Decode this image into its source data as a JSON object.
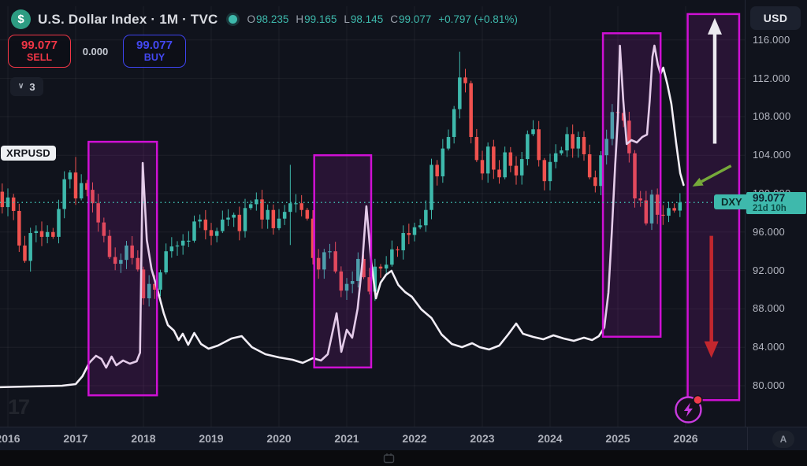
{
  "header": {
    "logo_glyph": "$",
    "symbol_title": "U.S. Dollar Index · 1M · TVC",
    "ohlc": {
      "o_label": "O",
      "o": "98.235",
      "h_label": "H",
      "h": "99.165",
      "l_label": "L",
      "l": "98.145",
      "c_label": "C",
      "c": "99.077",
      "change": "+0.797 (+0.81%)"
    },
    "sell": {
      "price": "99.077",
      "label": "SELL"
    },
    "spread": "0.000",
    "buy": {
      "price": "99.077",
      "label": "BUY"
    },
    "layers_count": "3",
    "layers_chevron": "∨"
  },
  "overlay_labels": {
    "xrp_tag": "XRPUSD",
    "dxy_tag": "DXY"
  },
  "right_axis": {
    "currency_button": "USD",
    "price_badge": {
      "price": "99.077",
      "countdown": "21d 10h"
    }
  },
  "timeline": {
    "auto_button": "A"
  },
  "branding": {
    "watermark": "17"
  },
  "colors": {
    "up": "#3eb9ac",
    "down": "#f0524f",
    "grid": "rgba(255,255,255,0.055)",
    "price_line": "#3eb9ac",
    "xrp_line": "#f2eef6",
    "box_stroke": "#cf10d4",
    "box_fill": "rgba(158,28,170,0.17)",
    "arrow_white": "#eceaf0",
    "arrow_red": "#c2272e",
    "arrow_green": "#76a93a",
    "bolt": "#c93bdf",
    "bolt_dot": "#ef3a4a"
  },
  "chart_data": {
    "type": "candlestick",
    "title": "U.S. Dollar Index (DXY), 1M, TVC — with XRPUSD line overlay",
    "x_ticks": [
      "2016",
      "2017",
      "2018",
      "2019",
      "2020",
      "2021",
      "2022",
      "2023",
      "2024",
      "2025",
      "2026"
    ],
    "y_ticks": [
      116,
      112,
      108,
      104,
      100,
      96,
      92,
      88,
      84,
      80
    ],
    "ylim": [
      77,
      119.5
    ],
    "grid": true,
    "price_line": 99.077,
    "series": [
      {
        "name": "DXY",
        "type": "candles",
        "start": "2015-11",
        "monthly_closes": [
          100.2,
          98.6,
          99.6,
          98.2,
          94.6,
          93.0,
          95.9,
          96.1,
          95.5,
          96.0,
          95.5,
          98.4,
          101.5,
          102.2,
          99.5,
          101.1,
          100.4,
          99.0,
          97.0,
          95.6,
          93.4,
          92.7,
          93.1,
          94.6,
          93.3,
          92.1,
          89.1,
          90.6,
          90.0,
          91.8,
          94.0,
          94.5,
          94.6,
          95.1,
          95.1,
          97.1,
          97.3,
          96.2,
          95.6,
          96.1,
          97.3,
          97.5,
          97.8,
          96.1,
          98.5,
          98.9,
          99.4,
          97.3,
          98.3,
          96.4,
          97.4,
          98.1,
          99.0,
          99.0,
          98.3,
          97.4,
          93.3,
          92.1,
          93.9,
          94.0,
          91.9,
          89.9,
          90.6,
          90.9,
          93.2,
          91.3,
          89.8,
          92.4,
          92.2,
          92.6,
          94.2,
          94.1,
          95.9,
          95.7,
          96.5,
          96.7,
          98.3,
          103.0,
          101.8,
          104.7,
          105.9,
          108.8,
          112.1,
          111.5,
          105.9,
          103.5,
          102.1,
          104.9,
          102.5,
          101.7,
          104.3,
          102.9,
          101.9,
          103.6,
          106.2,
          106.7,
          103.5,
          101.3,
          103.3,
          104.2,
          104.5,
          106.2,
          104.7,
          105.9,
          104.1,
          101.7,
          100.8,
          104.0,
          105.7,
          108.5,
          108.4,
          107.6,
          104.2,
          99.5,
          99.3,
          96.9,
          99.9,
          97.8,
          97.7,
          98.5,
          98.235,
          99.077
        ],
        "wick_overrides": [
          {
            "i": 6,
            "l": 91.88
          },
          {
            "i": 14,
            "h": 103.82
          },
          {
            "i": 27,
            "l": 88.25
          },
          {
            "i": 52,
            "h": 103.0,
            "l": 94.65
          },
          {
            "i": 66,
            "l": 89.5
          },
          {
            "i": 82,
            "h": 114.78
          },
          {
            "i": 110,
            "h": 110.2
          }
        ]
      },
      {
        "name": "XRPUSD",
        "type": "line",
        "note": "unlabeled overlay; points are [year_decimal, pane_y_px]",
        "points": [
          [
            2015.82,
            492
          ],
          [
            2016.3,
            491
          ],
          [
            2016.8,
            490
          ],
          [
            2017.0,
            488
          ],
          [
            2017.1,
            478
          ],
          [
            2017.2,
            461
          ],
          [
            2017.3,
            452
          ],
          [
            2017.38,
            456
          ],
          [
            2017.45,
            467
          ],
          [
            2017.53,
            453
          ],
          [
            2017.6,
            464
          ],
          [
            2017.7,
            458
          ],
          [
            2017.8,
            462
          ],
          [
            2017.9,
            459
          ],
          [
            2017.95,
            448
          ],
          [
            2017.99,
            207
          ],
          [
            2018.05,
            305
          ],
          [
            2018.12,
            342
          ],
          [
            2018.22,
            372
          ],
          [
            2018.3,
            398
          ],
          [
            2018.36,
            413
          ],
          [
            2018.45,
            420
          ],
          [
            2018.52,
            432
          ],
          [
            2018.58,
            424
          ],
          [
            2018.66,
            438
          ],
          [
            2018.75,
            423
          ],
          [
            2018.85,
            437
          ],
          [
            2018.96,
            443
          ],
          [
            2019.1,
            439
          ],
          [
            2019.3,
            430
          ],
          [
            2019.45,
            427
          ],
          [
            2019.6,
            441
          ],
          [
            2019.8,
            450
          ],
          [
            2020.0,
            454
          ],
          [
            2020.2,
            457
          ],
          [
            2020.35,
            461
          ],
          [
            2020.5,
            455
          ],
          [
            2020.62,
            458
          ],
          [
            2020.72,
            450
          ],
          [
            2020.85,
            398
          ],
          [
            2020.92,
            447
          ],
          [
            2021.0,
            419
          ],
          [
            2021.08,
            429
          ],
          [
            2021.16,
            392
          ],
          [
            2021.23,
            333
          ],
          [
            2021.29,
            262
          ],
          [
            2021.36,
            332
          ],
          [
            2021.43,
            379
          ],
          [
            2021.5,
            359
          ],
          [
            2021.58,
            349
          ],
          [
            2021.66,
            344
          ],
          [
            2021.76,
            362
          ],
          [
            2021.86,
            371
          ],
          [
            2021.96,
            377
          ],
          [
            2022.1,
            393
          ],
          [
            2022.25,
            404
          ],
          [
            2022.4,
            425
          ],
          [
            2022.55,
            437
          ],
          [
            2022.7,
            441
          ],
          [
            2022.85,
            436
          ],
          [
            2022.96,
            441
          ],
          [
            2023.1,
            444
          ],
          [
            2023.25,
            439
          ],
          [
            2023.38,
            425
          ],
          [
            2023.5,
            411
          ],
          [
            2023.6,
            424
          ],
          [
            2023.75,
            428
          ],
          [
            2023.9,
            431
          ],
          [
            2024.05,
            426
          ],
          [
            2024.2,
            430
          ],
          [
            2024.35,
            433
          ],
          [
            2024.5,
            429
          ],
          [
            2024.62,
            432
          ],
          [
            2024.72,
            427
          ],
          [
            2024.8,
            416
          ],
          [
            2024.86,
            372
          ],
          [
            2024.91,
            295
          ],
          [
            2024.96,
            210
          ],
          [
            2025.0,
            150
          ],
          [
            2025.03,
            58
          ],
          [
            2025.08,
            128
          ],
          [
            2025.13,
            183
          ],
          [
            2025.2,
            178
          ],
          [
            2025.28,
            181
          ],
          [
            2025.36,
            174
          ],
          [
            2025.43,
            171
          ],
          [
            2025.47,
            128
          ],
          [
            2025.51,
            72
          ],
          [
            2025.54,
            58
          ],
          [
            2025.59,
            82
          ],
          [
            2025.63,
            94
          ],
          [
            2025.67,
            86
          ],
          [
            2025.73,
            107
          ],
          [
            2025.79,
            132
          ],
          [
            2025.86,
            182
          ],
          [
            2025.92,
            220
          ],
          [
            2025.97,
            235
          ]
        ]
      }
    ],
    "annotations": {
      "boxes": [
        {
          "x0": 2017.19,
          "x1": 2018.2,
          "p0": 105.4,
          "p1": 79.0
        },
        {
          "x0": 2020.52,
          "x1": 2021.36,
          "p0": 104.0,
          "p1": 81.9
        },
        {
          "x0": 2024.78,
          "x1": 2025.63,
          "p0": 116.7,
          "p1": 85.1
        },
        {
          "x0": 2026.03,
          "x1": 2026.79,
          "p0": 118.7,
          "p1": 78.5
        }
      ],
      "arrows": [
        {
          "kind": "up",
          "x": 2026.43,
          "from_p": 105.2,
          "to_p": 118.3,
          "color_key": "arrow_white"
        },
        {
          "kind": "down",
          "x": 2026.38,
          "from_p": 95.6,
          "to_p": 82.9,
          "color_key": "arrow_red"
        },
        {
          "kind": "diag",
          "from": [
            2026.67,
            102.9
          ],
          "to": [
            2026.1,
            100.75
          ],
          "color_key": "arrow_green"
        }
      ],
      "bolt_icon": {
        "x": 2026.04,
        "p": 77.5
      }
    }
  }
}
